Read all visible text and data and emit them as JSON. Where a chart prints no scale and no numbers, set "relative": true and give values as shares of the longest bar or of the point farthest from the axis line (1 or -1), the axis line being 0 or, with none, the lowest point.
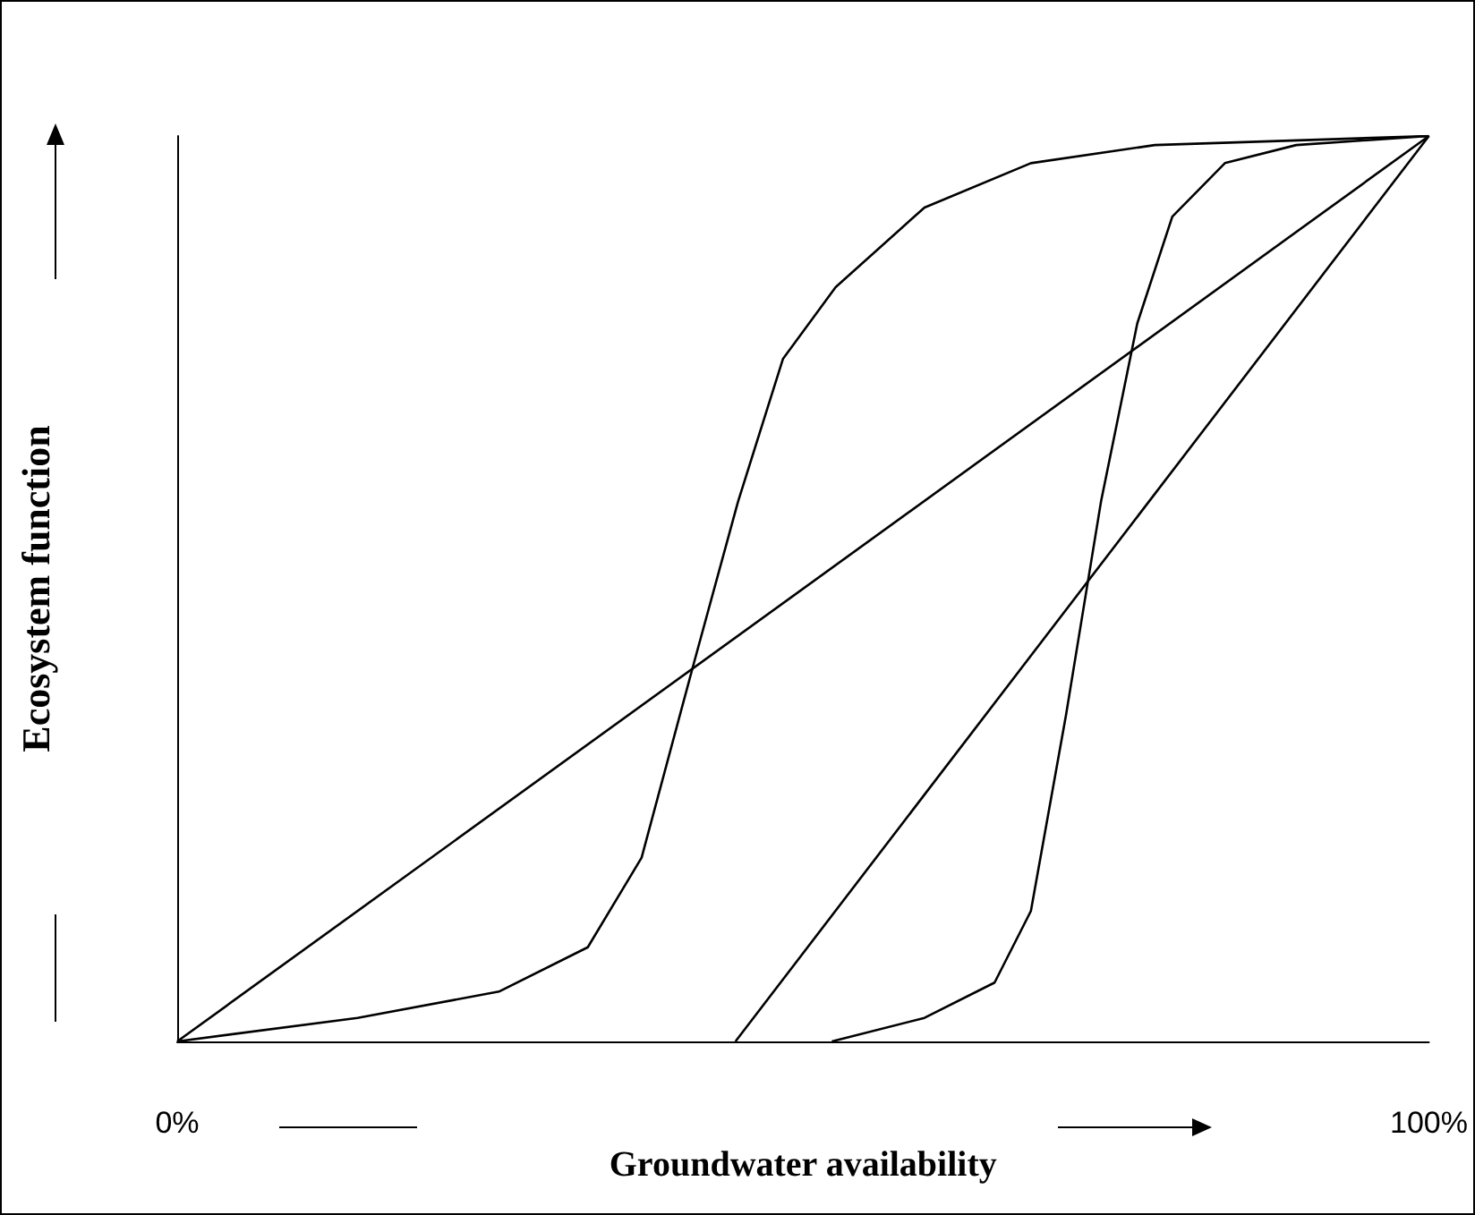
{
  "chart_data": {
    "type": "line",
    "relative": true,
    "xlabel": "Groundwater availability",
    "ylabel": "Ecosystem function",
    "xlim": [
      0,
      100
    ],
    "xticks": [
      {
        "value": 0,
        "label": "0%"
      },
      {
        "value": 100,
        "label": "100%"
      }
    ],
    "grid": false,
    "marker": "none",
    "line_style": "solid",
    "series": [
      {
        "color": "#000000",
        "x": [
          0,
          100
        ],
        "values": [
          0,
          1
        ]
      },
      {
        "color": "#000000",
        "x": [
          44.6,
          100
        ],
        "values": [
          0,
          1
        ]
      },
      {
        "color": "#000000",
        "x": [
          0,
          14.4,
          25.7,
          32.8,
          37.1,
          41.3,
          44.8,
          48.4,
          52.6,
          59.7,
          68.2,
          78.1,
          100
        ],
        "values": [
          0,
          0.026,
          0.055,
          0.104,
          0.203,
          0.419,
          0.596,
          0.754,
          0.833,
          0.921,
          0.97,
          0.99,
          1
        ]
      },
      {
        "color": "#000000",
        "x": [
          52.3,
          59.7,
          65.3,
          68.2,
          71.0,
          73.8,
          76.7,
          79.5,
          83.7,
          89.4,
          100
        ],
        "values": [
          0,
          0.026,
          0.065,
          0.144,
          0.36,
          0.596,
          0.793,
          0.911,
          0.97,
          0.99,
          1
        ]
      }
    ]
  }
}
